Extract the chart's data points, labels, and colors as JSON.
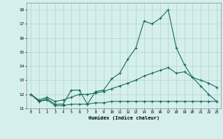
{
  "xlabel": "Humidex (Indice chaleur)",
  "x": [
    0,
    1,
    2,
    3,
    4,
    5,
    6,
    7,
    8,
    9,
    10,
    11,
    12,
    13,
    14,
    15,
    16,
    17,
    18,
    19,
    20,
    21,
    22,
    23
  ],
  "line1": [
    12.0,
    11.5,
    11.7,
    11.3,
    11.3,
    12.3,
    12.3,
    11.3,
    12.2,
    12.3,
    13.1,
    13.5,
    14.5,
    15.3,
    17.2,
    17.0,
    17.4,
    18.0,
    15.3,
    14.1,
    13.2,
    12.6,
    12.0,
    11.5
  ],
  "line2": [
    12.0,
    11.6,
    11.8,
    11.5,
    11.6,
    11.8,
    12.0,
    12.0,
    12.1,
    12.2,
    12.4,
    12.6,
    12.8,
    13.0,
    13.3,
    13.5,
    13.7,
    13.9,
    13.5,
    13.6,
    13.2,
    13.0,
    12.8,
    12.5
  ],
  "line3": [
    12.0,
    11.5,
    11.6,
    11.2,
    11.2,
    11.3,
    11.3,
    11.3,
    11.4,
    11.4,
    11.5,
    11.5,
    11.5,
    11.5,
    11.5,
    11.5,
    11.5,
    11.5,
    11.5,
    11.5,
    11.5,
    11.5,
    11.5,
    11.5
  ],
  "ylim": [
    11.0,
    18.5
  ],
  "xlim": [
    -0.5,
    23.5
  ],
  "yticks": [
    11,
    12,
    13,
    14,
    15,
    16,
    17,
    18
  ],
  "xticks": [
    0,
    1,
    2,
    3,
    4,
    5,
    6,
    7,
    8,
    9,
    10,
    11,
    12,
    13,
    14,
    15,
    16,
    17,
    18,
    19,
    20,
    21,
    22,
    23
  ],
  "bg_color": "#d4efec",
  "grid_color": "#b8d8d4",
  "line_color": "#1a6b5a",
  "figsize": [
    3.2,
    2.0
  ],
  "dpi": 100
}
